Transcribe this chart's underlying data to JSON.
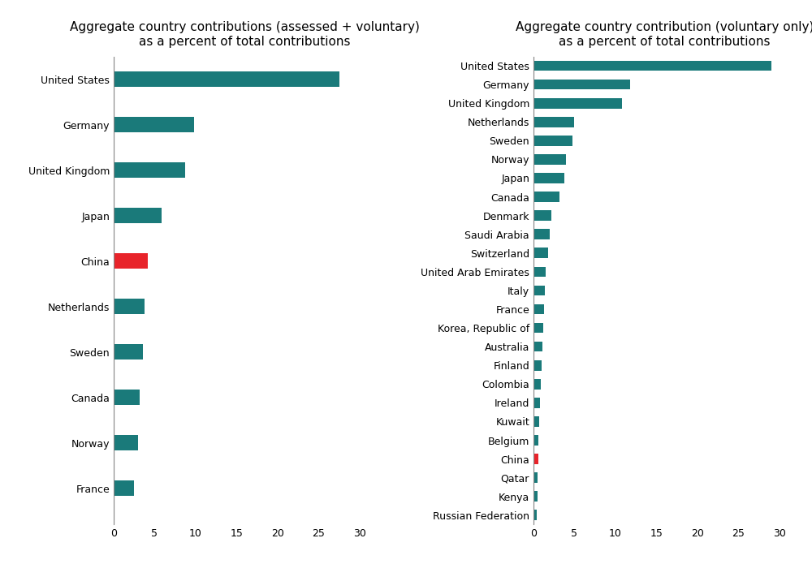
{
  "left_chart": {
    "title": "Aggregate country contributions (assessed + voluntary)\nas a percent of total contributions",
    "categories": [
      "United States",
      "Germany",
      "United Kingdom",
      "Japan",
      "China",
      "Netherlands",
      "Sweden",
      "Canada",
      "Norway",
      "France"
    ],
    "values": [
      27.5,
      9.8,
      8.7,
      5.8,
      4.2,
      3.8,
      3.6,
      3.2,
      3.0,
      2.5
    ],
    "colors": [
      "#1a7a7a",
      "#1a7a7a",
      "#1a7a7a",
      "#1a7a7a",
      "#e8232a",
      "#1a7a7a",
      "#1a7a7a",
      "#1a7a7a",
      "#1a7a7a",
      "#1a7a7a"
    ],
    "xlim": [
      0,
      32
    ],
    "xticks": [
      0,
      5,
      10,
      15,
      20,
      25,
      30
    ]
  },
  "right_chart": {
    "title": "Aggregate country contribution (voluntary only)\nas a percent of total contributions",
    "categories": [
      "United States",
      "Germany",
      "United Kingdom",
      "Netherlands",
      "Sweden",
      "Norway",
      "Japan",
      "Canada",
      "Denmark",
      "Saudi Arabia",
      "Switzerland",
      "United Arab Emirates",
      "Italy",
      "France",
      "Korea, Republic of",
      "Australia",
      "Finland",
      "Colombia",
      "Ireland",
      "Kuwait",
      "Belgium",
      "China",
      "Qatar",
      "Kenya",
      "Russian Federation"
    ],
    "values": [
      29.0,
      11.8,
      10.8,
      5.0,
      4.8,
      4.0,
      3.8,
      3.2,
      2.2,
      2.0,
      1.8,
      1.5,
      1.4,
      1.3,
      1.2,
      1.1,
      1.0,
      0.9,
      0.8,
      0.7,
      0.65,
      0.6,
      0.55,
      0.5,
      0.4
    ],
    "colors": [
      "#1a7a7a",
      "#1a7a7a",
      "#1a7a7a",
      "#1a7a7a",
      "#1a7a7a",
      "#1a7a7a",
      "#1a7a7a",
      "#1a7a7a",
      "#1a7a7a",
      "#1a7a7a",
      "#1a7a7a",
      "#1a7a7a",
      "#1a7a7a",
      "#1a7a7a",
      "#1a7a7a",
      "#1a7a7a",
      "#1a7a7a",
      "#1a7a7a",
      "#1a7a7a",
      "#1a7a7a",
      "#1a7a7a",
      "#e8232a",
      "#1a7a7a",
      "#1a7a7a",
      "#1a7a7a"
    ],
    "xlim": [
      0,
      32
    ],
    "xticks": [
      0,
      5,
      10,
      15,
      20,
      25,
      30
    ]
  },
  "bar_color_teal": "#1a7a7a",
  "bar_color_red": "#e8232a",
  "background_color": "#ffffff",
  "title_fontsize": 11,
  "tick_fontsize": 9,
  "label_fontsize": 9
}
